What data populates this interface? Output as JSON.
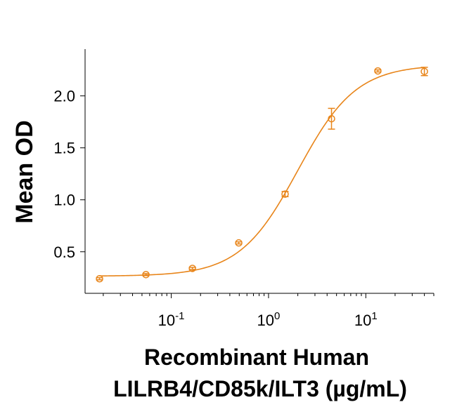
{
  "chart_data": {
    "type": "scatter",
    "title": "",
    "xlabel_line1": "Recombinant Human",
    "xlabel_line2": "LILRB4/CD85k/ILT3 (µg/mL)",
    "ylabel": "Mean OD",
    "xscale": "log",
    "xlim": [
      0.013,
      50
    ],
    "ylim": [
      0.1,
      2.45
    ],
    "x_tick_labels": [
      {
        "base": "10",
        "exp": "-1"
      },
      {
        "base": "10",
        "exp": "0"
      },
      {
        "base": "10",
        "exp": "1"
      }
    ],
    "y_ticks": [
      0.5,
      1.0,
      1.5,
      2.0
    ],
    "y_tick_labels": [
      "0.5",
      "1.0",
      "1.5",
      "2.0"
    ],
    "grid": false,
    "color": "#E8851A",
    "series": [
      {
        "points": [
          {
            "x": 0.0183,
            "y": 0.24,
            "err": 0.01
          },
          {
            "x": 0.0549,
            "y": 0.28,
            "err": 0.01
          },
          {
            "x": 0.165,
            "y": 0.34,
            "err": 0.01
          },
          {
            "x": 0.494,
            "y": 0.585,
            "err": 0.01
          },
          {
            "x": 1.48,
            "y": 1.055,
            "err": 0.025
          },
          {
            "x": 4.44,
            "y": 1.78,
            "err": 0.1
          },
          {
            "x": 13.3,
            "y": 2.24,
            "err": 0.01
          },
          {
            "x": 40.0,
            "y": 2.235,
            "err": 0.04
          }
        ],
        "fit": {
          "bottom": 0.265,
          "top": 2.3,
          "ec50": 2.0,
          "hill": 1.45
        }
      }
    ]
  }
}
